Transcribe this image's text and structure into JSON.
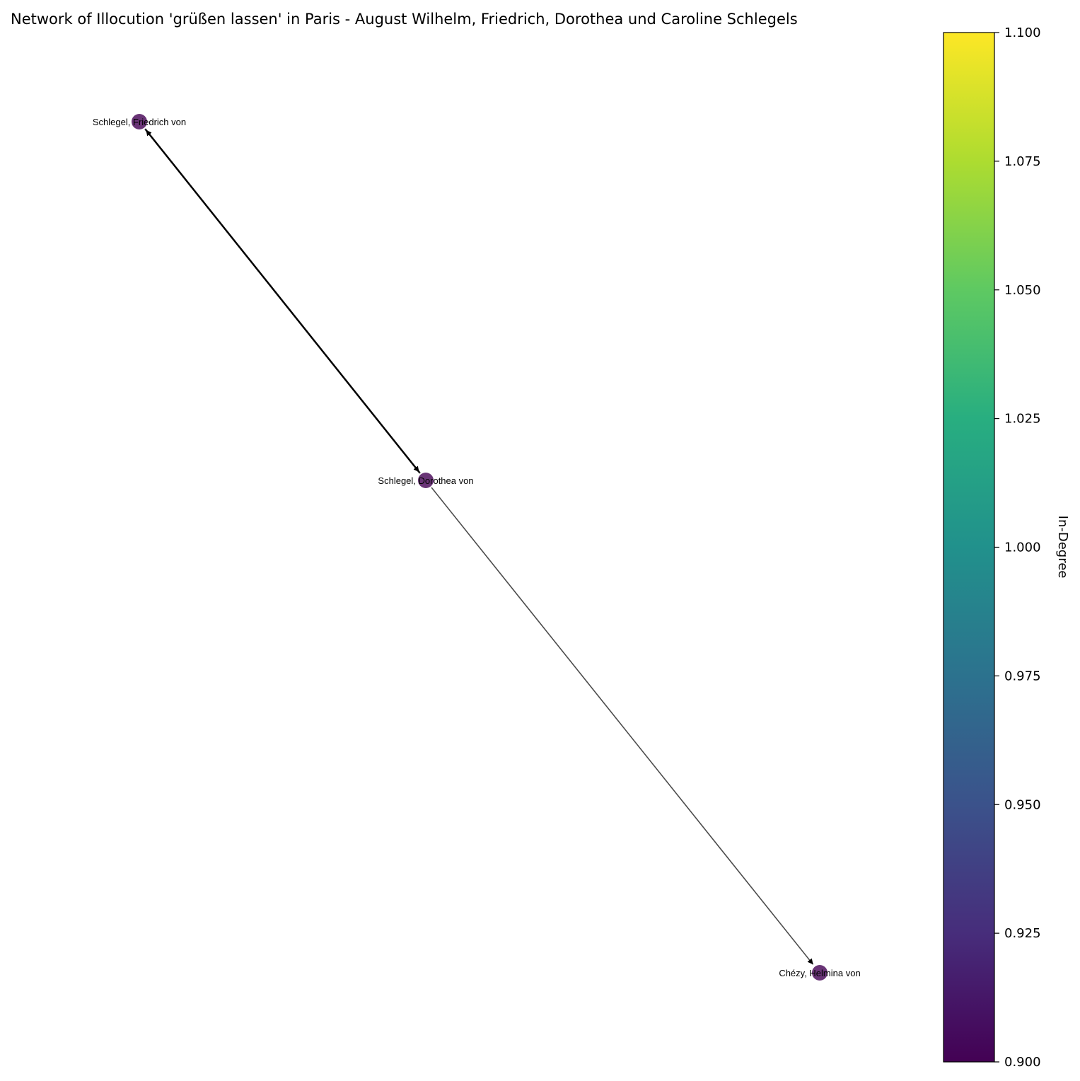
{
  "title": "Network of Illocution 'grüßen lassen' in Paris - August Wilhelm, Friedrich, Dorothea und Caroline Schlegels",
  "nodes": [
    {
      "id": "friedrich",
      "label": "Schlegel, Friedrich von",
      "in_degree": 1
    },
    {
      "id": "dorothea",
      "label": "Schlegel, Dorothea von",
      "in_degree": 1
    },
    {
      "id": "chezy",
      "label": "Chézy, Helmina von",
      "in_degree": 1
    }
  ],
  "edges": [
    {
      "source": "dorothea",
      "target": "friedrich"
    },
    {
      "source": "friedrich",
      "target": "dorothea"
    },
    {
      "source": "dorothea",
      "target": "chezy"
    }
  ],
  "colorbar": {
    "label": "In-Degree",
    "colormap": "viridis",
    "range": [
      0.9,
      1.1
    ],
    "ticks": [
      "0.900",
      "0.925",
      "0.950",
      "0.975",
      "1.000",
      "1.025",
      "1.050",
      "1.075",
      "1.100"
    ]
  },
  "colors": {
    "node_fill": "#440154",
    "edge": "#000000"
  }
}
